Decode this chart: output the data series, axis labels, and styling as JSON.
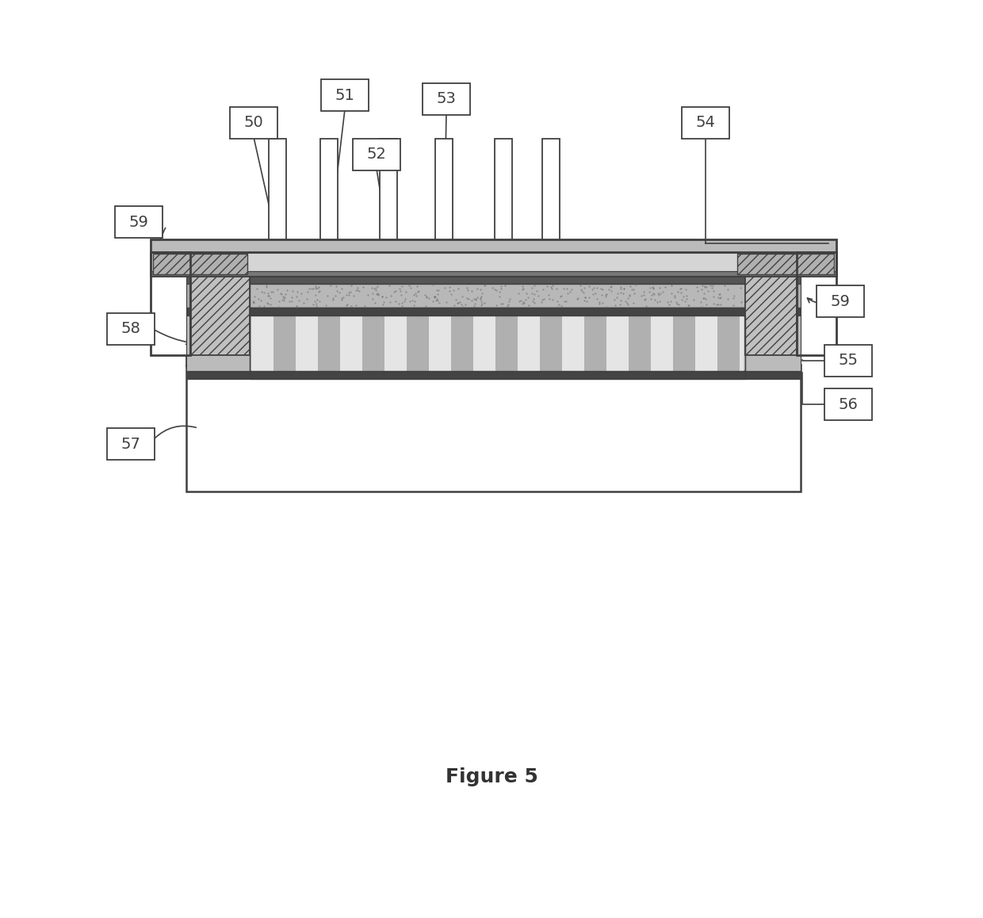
{
  "title": "Figure 5",
  "title_fontsize": 18,
  "title_fontweight": "bold",
  "background_color": "#ffffff",
  "line_color": "#404040",
  "label_color": "#333333",
  "fig_w": 12.4,
  "fig_h": 11.58,
  "dpi": 100
}
